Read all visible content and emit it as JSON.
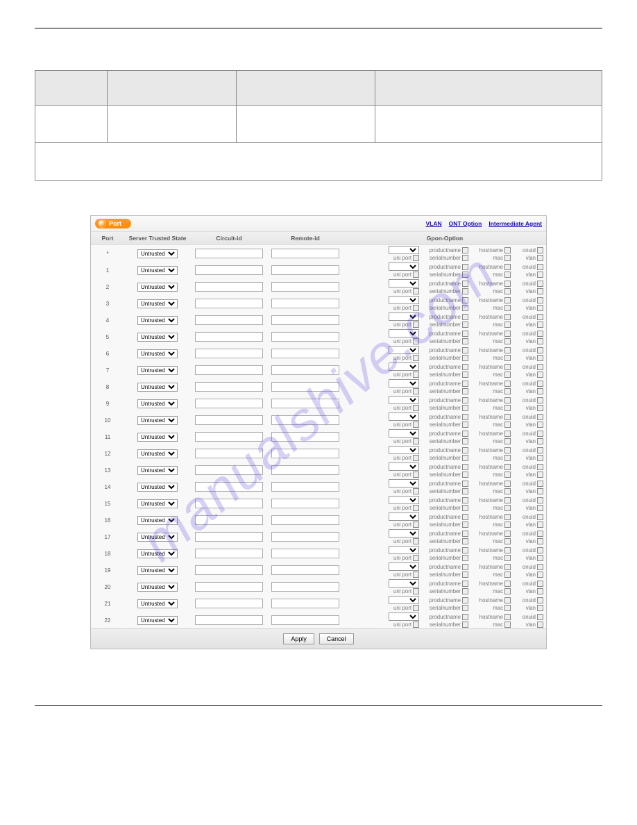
{
  "watermark": "manualshive.com",
  "pill_label": "Port",
  "top_links": {
    "vlan": "VLAN",
    "ont": "ONT Option",
    "ia": "Intermediate Agent"
  },
  "columns": {
    "port": "Port",
    "state": "Server Trusted State",
    "circuit": "Circuit-id",
    "remote": "Remote-id",
    "gpon": "Gpon-Option"
  },
  "state_value": "Untrusted",
  "gpon_labels": {
    "productname": "productname",
    "hostname": "hostname",
    "onuid": "onuid",
    "uniport": "uni port",
    "serialnumber": "serialnumber",
    "mac": "mac",
    "vlan": "vlan"
  },
  "buttons": {
    "apply": "Apply",
    "cancel": "Cancel"
  },
  "ports": [
    "*",
    "1",
    "2",
    "3",
    "4",
    "5",
    "6",
    "7",
    "8",
    "9",
    "10",
    "11",
    "12",
    "13",
    "14",
    "15",
    "16",
    "17",
    "18",
    "19",
    "20",
    "21",
    "22"
  ],
  "head_table": {
    "row1": [
      "",
      "",
      "",
      ""
    ],
    "row2": [
      "",
      "",
      "",
      ""
    ]
  },
  "colors": {
    "accent": "#ff8a00",
    "link": "#1a0dab",
    "wm": "rgba(90,70,220,0.25)",
    "border": "#888888",
    "bg": "#ffffff"
  }
}
